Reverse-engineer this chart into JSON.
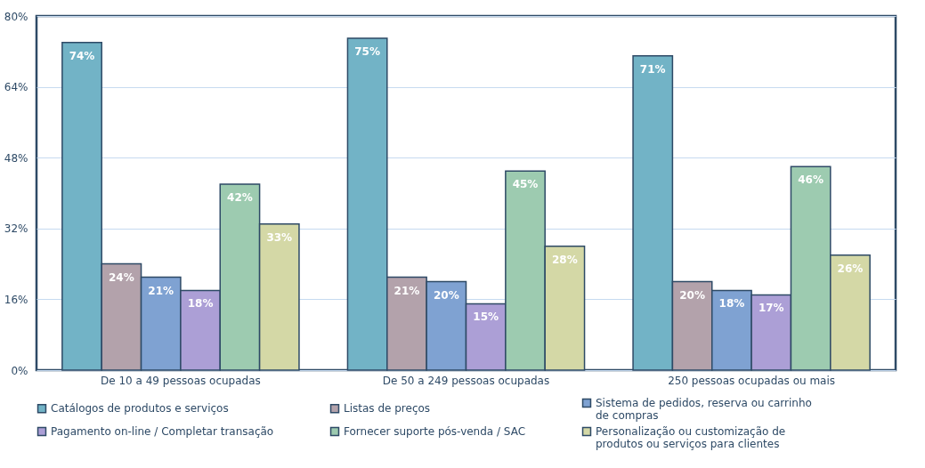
{
  "chart_data": {
    "type": "bar",
    "categories": [
      "De 10 a 49 pessoas ocupadas",
      "De 50 a 249 pessoas ocupadas",
      "250 pessoas ocupadas ou mais"
    ],
    "series": [
      {
        "name": "Catálogos de produtos e serviços",
        "color": "#72b3c6",
        "values": [
          74,
          75,
          71
        ],
        "value_labels": [
          "74%",
          "75%",
          "71%"
        ]
      },
      {
        "name": "Listas de preços",
        "color": "#b3a2ab",
        "values": [
          24,
          21,
          20
        ],
        "value_labels": [
          "24%",
          "21%",
          "20%"
        ]
      },
      {
        "name": "Sistema de pedidos, reserva ou carrinho de compras",
        "color": "#7fa2d2",
        "values": [
          21,
          20,
          18
        ],
        "value_labels": [
          "21%",
          "20%",
          "18%"
        ]
      },
      {
        "name": "Pagamento on-line / Completar transação",
        "color": "#ac9fd6",
        "values": [
          18,
          15,
          17
        ],
        "value_labels": [
          "18%",
          "15%",
          "17%"
        ]
      },
      {
        "name": "Fornecer suporte pós-venda / SAC",
        "color": "#9dcbb0",
        "values": [
          42,
          45,
          46
        ],
        "value_labels": [
          "42%",
          "45%",
          "46%"
        ]
      },
      {
        "name": "Personalização ou customização de produtos ou serviços para clientes",
        "color": "#d4d8a6",
        "values": [
          33,
          28,
          26
        ],
        "value_labels": [
          "33%",
          "28%",
          "26%"
        ]
      }
    ],
    "ylim": [
      0,
      80
    ],
    "yticks": [
      {
        "value": 0,
        "label": "0%"
      },
      {
        "value": 16,
        "label": "16%"
      },
      {
        "value": 32,
        "label": "32%"
      },
      {
        "value": 48,
        "label": "48%"
      },
      {
        "value": 64,
        "label": "64%"
      },
      {
        "value": 80,
        "label": "80%"
      }
    ],
    "grid": "y",
    "legend": "bottom"
  }
}
